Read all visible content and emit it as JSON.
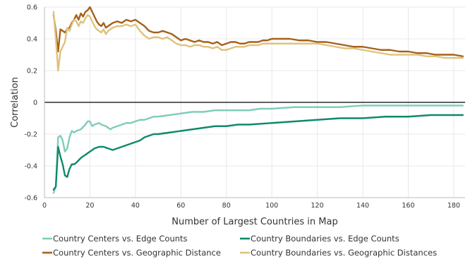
{
  "chart_data": {
    "type": "line",
    "xlabel": "Number of Largest Countries in Map",
    "ylabel": "Correlation",
    "xlim": [
      0,
      185
    ],
    "ylim": [
      -0.6,
      0.6
    ],
    "x_ticks": [
      0,
      20,
      40,
      60,
      80,
      100,
      120,
      140,
      160,
      180
    ],
    "y_ticks": [
      -0.6,
      -0.4,
      -0.2,
      0,
      0.2,
      0.4,
      0.6
    ],
    "y_tick_labels": [
      "-0.6",
      "-0.4",
      "-0.2",
      "0",
      "0.2",
      "0.4",
      "0.6"
    ],
    "grid": true,
    "legend_position": "bottom",
    "series": [
      {
        "name": "Country Centers vs. Edge Counts",
        "color": "#7fcdbb",
        "points": [
          [
            4,
            -0.57
          ],
          [
            5,
            -0.53
          ],
          [
            6,
            -0.22
          ],
          [
            7,
            -0.21
          ],
          [
            8,
            -0.24
          ],
          [
            9,
            -0.31
          ],
          [
            10,
            -0.29
          ],
          [
            11,
            -0.22
          ],
          [
            12,
            -0.18
          ],
          [
            13,
            -0.19
          ],
          [
            14,
            -0.18
          ],
          [
            16,
            -0.17
          ],
          [
            18,
            -0.14
          ],
          [
            19,
            -0.12
          ],
          [
            20,
            -0.12
          ],
          [
            21,
            -0.15
          ],
          [
            22,
            -0.14
          ],
          [
            24,
            -0.13
          ],
          [
            25,
            -0.14
          ],
          [
            27,
            -0.15
          ],
          [
            28,
            -0.16
          ],
          [
            29,
            -0.17
          ],
          [
            30,
            -0.16
          ],
          [
            32,
            -0.15
          ],
          [
            34,
            -0.14
          ],
          [
            36,
            -0.13
          ],
          [
            38,
            -0.13
          ],
          [
            40,
            -0.12
          ],
          [
            42,
            -0.11
          ],
          [
            44,
            -0.11
          ],
          [
            46,
            -0.1
          ],
          [
            48,
            -0.09
          ],
          [
            50,
            -0.09
          ],
          [
            55,
            -0.08
          ],
          [
            60,
            -0.07
          ],
          [
            65,
            -0.06
          ],
          [
            70,
            -0.06
          ],
          [
            75,
            -0.05
          ],
          [
            80,
            -0.05
          ],
          [
            85,
            -0.05
          ],
          [
            90,
            -0.05
          ],
          [
            95,
            -0.04
          ],
          [
            100,
            -0.04
          ],
          [
            110,
            -0.03
          ],
          [
            120,
            -0.03
          ],
          [
            130,
            -0.03
          ],
          [
            140,
            -0.02
          ],
          [
            150,
            -0.02
          ],
          [
            160,
            -0.02
          ],
          [
            170,
            -0.02
          ],
          [
            180,
            -0.02
          ],
          [
            184,
            -0.02
          ]
        ]
      },
      {
        "name": "Country Boundaries vs. Edge Counts",
        "color": "#0f8a6a",
        "points": [
          [
            4,
            -0.55
          ],
          [
            5,
            -0.53
          ],
          [
            6,
            -0.28
          ],
          [
            7,
            -0.34
          ],
          [
            8,
            -0.39
          ],
          [
            9,
            -0.46
          ],
          [
            10,
            -0.47
          ],
          [
            11,
            -0.42
          ],
          [
            12,
            -0.39
          ],
          [
            13,
            -0.39
          ],
          [
            14,
            -0.38
          ],
          [
            16,
            -0.35
          ],
          [
            18,
            -0.33
          ],
          [
            20,
            -0.31
          ],
          [
            22,
            -0.29
          ],
          [
            24,
            -0.28
          ],
          [
            26,
            -0.28
          ],
          [
            28,
            -0.29
          ],
          [
            30,
            -0.3
          ],
          [
            32,
            -0.29
          ],
          [
            34,
            -0.28
          ],
          [
            36,
            -0.27
          ],
          [
            38,
            -0.26
          ],
          [
            40,
            -0.25
          ],
          [
            42,
            -0.24
          ],
          [
            44,
            -0.22
          ],
          [
            46,
            -0.21
          ],
          [
            48,
            -0.2
          ],
          [
            50,
            -0.2
          ],
          [
            55,
            -0.19
          ],
          [
            60,
            -0.18
          ],
          [
            65,
            -0.17
          ],
          [
            70,
            -0.16
          ],
          [
            75,
            -0.15
          ],
          [
            80,
            -0.15
          ],
          [
            85,
            -0.14
          ],
          [
            90,
            -0.14
          ],
          [
            100,
            -0.13
          ],
          [
            110,
            -0.12
          ],
          [
            120,
            -0.11
          ],
          [
            130,
            -0.1
          ],
          [
            140,
            -0.1
          ],
          [
            150,
            -0.09
          ],
          [
            160,
            -0.09
          ],
          [
            170,
            -0.08
          ],
          [
            180,
            -0.08
          ],
          [
            184,
            -0.08
          ]
        ]
      },
      {
        "name": "Country Centers vs. Geographic Distance",
        "color": "#a6611a",
        "points": [
          [
            4,
            0.55
          ],
          [
            5,
            0.45
          ],
          [
            6,
            0.32
          ],
          [
            7,
            0.46
          ],
          [
            8,
            0.45
          ],
          [
            9,
            0.44
          ],
          [
            10,
            0.46
          ],
          [
            11,
            0.47
          ],
          [
            12,
            0.5
          ],
          [
            13,
            0.52
          ],
          [
            14,
            0.55
          ],
          [
            15,
            0.52
          ],
          [
            16,
            0.56
          ],
          [
            17,
            0.54
          ],
          [
            18,
            0.57
          ],
          [
            19,
            0.58
          ],
          [
            20,
            0.6
          ],
          [
            21,
            0.57
          ],
          [
            22,
            0.54
          ],
          [
            23,
            0.51
          ],
          [
            24,
            0.49
          ],
          [
            25,
            0.48
          ],
          [
            26,
            0.5
          ],
          [
            27,
            0.47
          ],
          [
            28,
            0.48
          ],
          [
            29,
            0.49
          ],
          [
            30,
            0.5
          ],
          [
            32,
            0.51
          ],
          [
            34,
            0.5
          ],
          [
            36,
            0.52
          ],
          [
            38,
            0.51
          ],
          [
            40,
            0.52
          ],
          [
            42,
            0.5
          ],
          [
            44,
            0.48
          ],
          [
            46,
            0.45
          ],
          [
            48,
            0.44
          ],
          [
            50,
            0.44
          ],
          [
            52,
            0.45
          ],
          [
            54,
            0.44
          ],
          [
            56,
            0.43
          ],
          [
            58,
            0.41
          ],
          [
            60,
            0.39
          ],
          [
            62,
            0.4
          ],
          [
            64,
            0.39
          ],
          [
            66,
            0.38
          ],
          [
            68,
            0.39
          ],
          [
            70,
            0.38
          ],
          [
            72,
            0.38
          ],
          [
            74,
            0.37
          ],
          [
            76,
            0.38
          ],
          [
            78,
            0.36
          ],
          [
            80,
            0.37
          ],
          [
            82,
            0.38
          ],
          [
            84,
            0.38
          ],
          [
            86,
            0.37
          ],
          [
            88,
            0.37
          ],
          [
            90,
            0.38
          ],
          [
            92,
            0.38
          ],
          [
            94,
            0.38
          ],
          [
            96,
            0.39
          ],
          [
            98,
            0.39
          ],
          [
            100,
            0.4
          ],
          [
            104,
            0.4
          ],
          [
            108,
            0.4
          ],
          [
            112,
            0.39
          ],
          [
            116,
            0.39
          ],
          [
            120,
            0.38
          ],
          [
            124,
            0.38
          ],
          [
            128,
            0.37
          ],
          [
            132,
            0.36
          ],
          [
            136,
            0.35
          ],
          [
            140,
            0.35
          ],
          [
            144,
            0.34
          ],
          [
            148,
            0.33
          ],
          [
            152,
            0.33
          ],
          [
            156,
            0.32
          ],
          [
            160,
            0.32
          ],
          [
            164,
            0.31
          ],
          [
            168,
            0.31
          ],
          [
            172,
            0.3
          ],
          [
            176,
            0.3
          ],
          [
            180,
            0.3
          ],
          [
            184,
            0.29
          ]
        ]
      },
      {
        "name": "Country Boundaries vs. Geographic Distances",
        "color": "#dfc27d",
        "points": [
          [
            4,
            0.57
          ],
          [
            5,
            0.4
          ],
          [
            6,
            0.2
          ],
          [
            7,
            0.32
          ],
          [
            8,
            0.35
          ],
          [
            9,
            0.38
          ],
          [
            10,
            0.47
          ],
          [
            11,
            0.45
          ],
          [
            12,
            0.49
          ],
          [
            13,
            0.52
          ],
          [
            14,
            0.51
          ],
          [
            15,
            0.48
          ],
          [
            16,
            0.51
          ],
          [
            17,
            0.5
          ],
          [
            18,
            0.53
          ],
          [
            19,
            0.55
          ],
          [
            20,
            0.54
          ],
          [
            21,
            0.51
          ],
          [
            22,
            0.48
          ],
          [
            23,
            0.46
          ],
          [
            24,
            0.45
          ],
          [
            25,
            0.44
          ],
          [
            26,
            0.46
          ],
          [
            27,
            0.43
          ],
          [
            28,
            0.45
          ],
          [
            29,
            0.46
          ],
          [
            30,
            0.47
          ],
          [
            32,
            0.48
          ],
          [
            34,
            0.48
          ],
          [
            36,
            0.49
          ],
          [
            38,
            0.48
          ],
          [
            40,
            0.49
          ],
          [
            42,
            0.45
          ],
          [
            44,
            0.42
          ],
          [
            46,
            0.4
          ],
          [
            48,
            0.41
          ],
          [
            50,
            0.41
          ],
          [
            52,
            0.4
          ],
          [
            54,
            0.41
          ],
          [
            56,
            0.39
          ],
          [
            58,
            0.37
          ],
          [
            60,
            0.36
          ],
          [
            62,
            0.36
          ],
          [
            64,
            0.35
          ],
          [
            66,
            0.36
          ],
          [
            68,
            0.36
          ],
          [
            70,
            0.35
          ],
          [
            72,
            0.35
          ],
          [
            74,
            0.34
          ],
          [
            76,
            0.35
          ],
          [
            78,
            0.33
          ],
          [
            80,
            0.33
          ],
          [
            82,
            0.34
          ],
          [
            84,
            0.35
          ],
          [
            86,
            0.35
          ],
          [
            88,
            0.35
          ],
          [
            90,
            0.36
          ],
          [
            92,
            0.36
          ],
          [
            94,
            0.36
          ],
          [
            96,
            0.37
          ],
          [
            98,
            0.37
          ],
          [
            100,
            0.37
          ],
          [
            104,
            0.37
          ],
          [
            108,
            0.37
          ],
          [
            112,
            0.37
          ],
          [
            116,
            0.37
          ],
          [
            120,
            0.37
          ],
          [
            124,
            0.36
          ],
          [
            128,
            0.35
          ],
          [
            132,
            0.34
          ],
          [
            136,
            0.34
          ],
          [
            140,
            0.33
          ],
          [
            144,
            0.32
          ],
          [
            148,
            0.31
          ],
          [
            152,
            0.3
          ],
          [
            156,
            0.3
          ],
          [
            160,
            0.3
          ],
          [
            164,
            0.3
          ],
          [
            168,
            0.29
          ],
          [
            172,
            0.29
          ],
          [
            176,
            0.28
          ],
          [
            180,
            0.28
          ],
          [
            184,
            0.28
          ]
        ]
      }
    ]
  }
}
